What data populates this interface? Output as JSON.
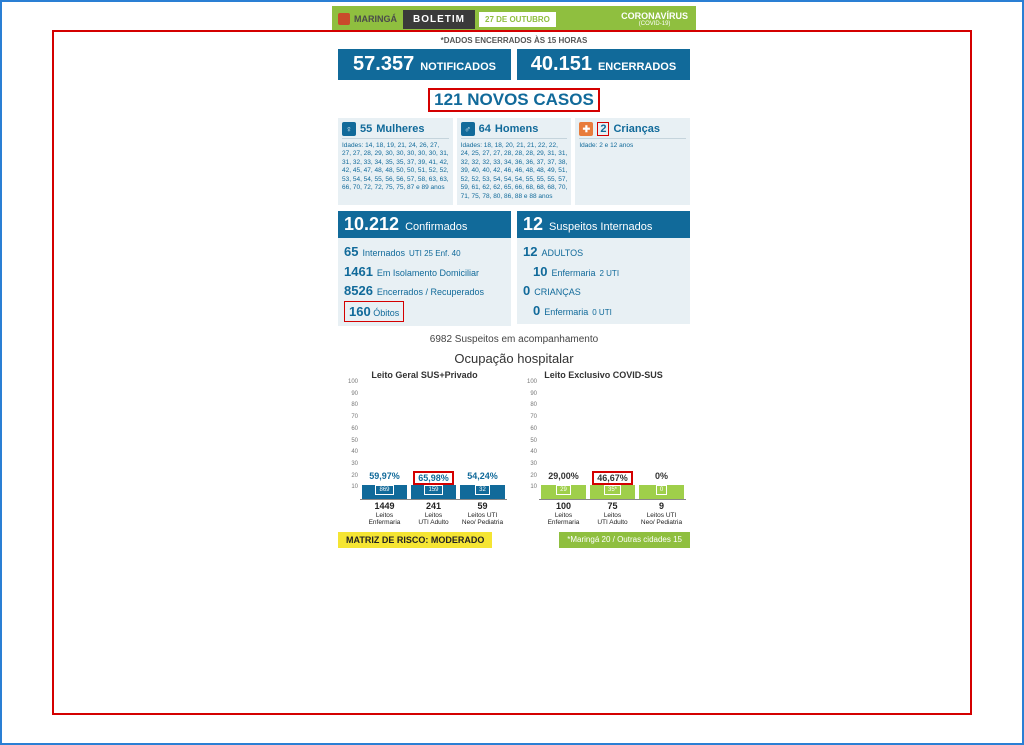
{
  "header": {
    "city": "MARINGÁ",
    "title": "BOLETIM",
    "date": "27 DE OUTUBRO",
    "corona": "CORONAVÍRUS",
    "corona_sub": "(COVID-19)"
  },
  "data_close": "*DADOS ENCERRADOS ÀS 15 HORAS",
  "top": {
    "notified_n": "57.357",
    "notified_l": "NOTIFICADOS",
    "closed_n": "40.151",
    "closed_l": "ENCERRADOS"
  },
  "new_cases": "121 NOVOS CASOS",
  "demog": {
    "women": {
      "n": "55",
      "l": "Mulheres",
      "ages": "Idades: 14, 18, 19, 21, 24, 26, 27, 27, 27, 28, 29, 30, 30, 30, 30, 30, 31, 31, 32, 33, 34, 35, 35, 37, 39, 41, 42, 42, 45, 47, 48, 48, 50, 50, 51, 52, 52, 53, 54, 54, 55, 56, 56, 57, 58, 63, 63, 66, 70, 72, 72, 75, 75, 87 e 89 anos"
    },
    "men": {
      "n": "64",
      "l": "Homens",
      "ages": "Idades: 18, 18, 20, 21, 21, 22, 22, 24, 25, 27, 27, 28, 28, 28, 29, 31, 31, 32, 32, 32, 33, 34, 36, 36, 37, 37, 38, 39, 40, 40, 42, 46, 46, 48, 48, 49, 51, 52, 52, 53, 54, 54, 54, 55, 55, 55, 57, 59, 61, 62, 62, 65, 66, 68, 68, 68, 70, 71, 75, 78, 80, 86, 88 e 88 anos"
    },
    "kids": {
      "n": "2",
      "l": "Crianças",
      "ages": "Idade: 2 e 12 anos"
    }
  },
  "confirmed": {
    "n": "10.212",
    "l": "Confirmados",
    "lines": [
      {
        "b": "65",
        "t": "Internados",
        "extra": "UTI 25 Enf. 40"
      },
      {
        "b": "1461",
        "t": "Em Isolamento Domiciliar"
      },
      {
        "b": "8526",
        "t": "Encerrados / Recuperados"
      },
      {
        "b": "160",
        "t": "Óbitos",
        "red": true
      }
    ]
  },
  "suspects": {
    "n": "12",
    "l": "Suspeitos Internados",
    "lines": [
      {
        "b": "12",
        "t": "ADULTOS"
      },
      {
        "b": "10",
        "t": "Enfermaria",
        "extra": "2 UTI",
        "indent": true
      },
      {
        "b": "0",
        "t": "CRIANÇAS"
      },
      {
        "b": "0",
        "t": "Enfermaria",
        "extra": "0 UTI",
        "indent": true
      }
    ]
  },
  "acomp": "6982 Suspeitos em acompanhamento",
  "occ_title": "Ocupação hospitalar",
  "chart_left": {
    "title": "Leito Geral SUS+Privado",
    "color": "#116a9a",
    "pct_color": "#116a9a",
    "ymax": 100,
    "bars": [
      {
        "pct": 59.97,
        "pct_label": "59,97%",
        "box": "869",
        "total": "1449",
        "cat1": "Leitos",
        "cat2": "Enfermaria"
      },
      {
        "pct": 65.98,
        "pct_label": "65,98%",
        "box": "159",
        "total": "241",
        "cat1": "Leitos",
        "cat2": "UTI Adulto",
        "red": true
      },
      {
        "pct": 54.24,
        "pct_label": "54,24%",
        "box": "32",
        "total": "59",
        "cat1": "Leitos UTI",
        "cat2": "Neo/ Pediatria"
      }
    ]
  },
  "chart_right": {
    "title": "Leito Exclusivo COVID-SUS",
    "color": "#9fcf4a",
    "pct_color": "#333333",
    "ymax": 100,
    "bars": [
      {
        "pct": 29.0,
        "pct_label": "29,00%",
        "box": "29",
        "total": "100",
        "cat1": "Leitos",
        "cat2": "Enfermaria"
      },
      {
        "pct": 46.67,
        "pct_label": "46,67%",
        "box": "35*",
        "total": "75",
        "cat1": "Leitos",
        "cat2": "UTI Adulto",
        "red": true
      },
      {
        "pct": 0,
        "pct_label": "0%",
        "box": "0",
        "total": "9",
        "cat1": "Leitos UTI",
        "cat2": "Neo/ Pediatria"
      }
    ]
  },
  "yticks": [
    100,
    90,
    80,
    70,
    60,
    50,
    40,
    30,
    20,
    10
  ],
  "footer": {
    "risk": "MATRIZ DE RISCO: MODERADO",
    "note": "*Maringá 20 / Outras cidades 15"
  }
}
